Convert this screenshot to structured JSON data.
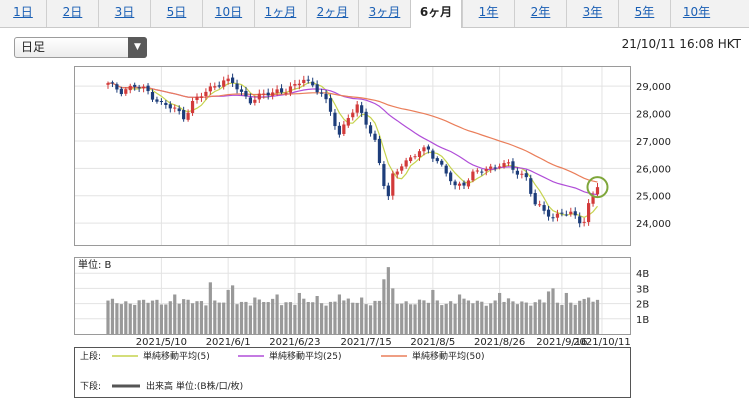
{
  "tabs": [
    {
      "label": "1日",
      "active": false
    },
    {
      "label": "2日",
      "active": false
    },
    {
      "label": "3日",
      "active": false
    },
    {
      "label": "5日",
      "active": false
    },
    {
      "label": "10日",
      "active": false
    },
    {
      "label": "1ヶ月",
      "active": false
    },
    {
      "label": "2ヶ月",
      "active": false
    },
    {
      "label": "3ヶ月",
      "active": false
    },
    {
      "label": "6ヶ月",
      "active": true
    },
    {
      "label": "1年",
      "active": false
    },
    {
      "label": "2年",
      "active": false
    },
    {
      "label": "3年",
      "active": false
    },
    {
      "label": "5年",
      "active": false
    },
    {
      "label": "10年",
      "active": false
    }
  ],
  "selector": {
    "value": "日足"
  },
  "timestamp": "21/10/11 16:08 HKT",
  "chart_data": {
    "type": "candlestick",
    "price": {
      "ylim": [
        23200,
        29700
      ],
      "yticks": [
        {
          "value": 24000,
          "label": "24,000"
        },
        {
          "value": 25000,
          "label": "25,000"
        },
        {
          "value": 26000,
          "label": "26,000"
        },
        {
          "value": 27000,
          "label": "27,000"
        },
        {
          "value": 28000,
          "label": "28,000"
        },
        {
          "value": 29000,
          "label": "29,000"
        }
      ],
      "anchors": [
        [
          0,
          29050
        ],
        [
          3,
          28850
        ],
        [
          6,
          29000
        ],
        [
          9,
          28800
        ],
        [
          12,
          28350
        ],
        [
          15,
          28150
        ],
        [
          17,
          27900
        ],
        [
          19,
          28400
        ],
        [
          21,
          28650
        ],
        [
          24,
          29050
        ],
        [
          26,
          29200
        ],
        [
          28,
          29100
        ],
        [
          30,
          28750
        ],
        [
          32,
          28500
        ],
        [
          35,
          28650
        ],
        [
          38,
          28850
        ],
        [
          40,
          28850
        ],
        [
          42,
          28950
        ],
        [
          44,
          29300
        ],
        [
          46,
          29050
        ],
        [
          48,
          28700
        ],
        [
          50,
          28050
        ],
        [
          52,
          27250
        ],
        [
          54,
          27900
        ],
        [
          56,
          28200
        ],
        [
          58,
          27700
        ],
        [
          60,
          27000
        ],
        [
          62,
          25400
        ],
        [
          63,
          24900
        ],
        [
          64,
          25700
        ],
        [
          66,
          26200
        ],
        [
          68,
          26350
        ],
        [
          70,
          26600
        ],
        [
          72,
          26700
        ],
        [
          74,
          26300
        ],
        [
          76,
          25800
        ],
        [
          78,
          25300
        ],
        [
          80,
          25500
        ],
        [
          82,
          25800
        ],
        [
          84,
          25900
        ],
        [
          86,
          26000
        ],
        [
          88,
          26200
        ],
        [
          90,
          26100
        ],
        [
          92,
          25800
        ],
        [
          94,
          25700
        ],
        [
          95,
          25200
        ],
        [
          96,
          24700
        ],
        [
          98,
          24400
        ],
        [
          100,
          24200
        ],
        [
          102,
          24450
        ],
        [
          104,
          24300
        ],
        [
          106,
          24050
        ],
        [
          107,
          24100
        ],
        [
          108,
          24700
        ],
        [
          109,
          25050
        ],
        [
          110,
          25400
        ]
      ],
      "ma_labels": [
        "単純移動平均(5)",
        "単純移動平均(25)",
        "単純移動平均(50)"
      ],
      "ma_colors": [
        "#c6d34f",
        "#b04ed8",
        "#ea7e5a"
      ],
      "up_color": "#d23a3a",
      "down_color": "#1d3d7a"
    },
    "volume": {
      "unit_label": "単位: B",
      "ylim": [
        0,
        5
      ],
      "yticks": [
        {
          "value": 1,
          "label": "1B"
        },
        {
          "value": 2,
          "label": "2B"
        },
        {
          "value": 3,
          "label": "3B"
        },
        {
          "value": 4,
          "label": "4B"
        }
      ],
      "base": 2.1,
      "spikes": [
        [
          15,
          2.6
        ],
        [
          23,
          3.4
        ],
        [
          27,
          2.9
        ],
        [
          28,
          3.2
        ],
        [
          33,
          2.4
        ],
        [
          38,
          2.6
        ],
        [
          43,
          2.7
        ],
        [
          47,
          2.5
        ],
        [
          52,
          2.6
        ],
        [
          57,
          2.4
        ],
        [
          62,
          3.6
        ],
        [
          63,
          4.4
        ],
        [
          64,
          3.0
        ],
        [
          73,
          2.9
        ],
        [
          79,
          2.6
        ],
        [
          88,
          2.7
        ],
        [
          99,
          2.8
        ],
        [
          100,
          3.0
        ],
        [
          103,
          2.7
        ],
        [
          108,
          2.4
        ]
      ],
      "bar_color": "#999999"
    },
    "n_days": 111,
    "xticks": [
      {
        "index": 12,
        "label": "2021/5/10"
      },
      {
        "index": 27,
        "label": "2021/6/1"
      },
      {
        "index": 42,
        "label": "2021/6/23"
      },
      {
        "index": 58,
        "label": "2021/7/15"
      },
      {
        "index": 73,
        "label": "2021/8/5"
      },
      {
        "index": 88,
        "label": "2021/8/26"
      },
      {
        "index": 102,
        "label": "2021/9/16"
      },
      {
        "index": 111,
        "label": "2021/10/11"
      }
    ],
    "highlight_index": 110,
    "legend": {
      "upper_label": "上段:",
      "lower_label": "下段:",
      "volume_label": "出来高 単位:(B株/口/枚)"
    }
  }
}
